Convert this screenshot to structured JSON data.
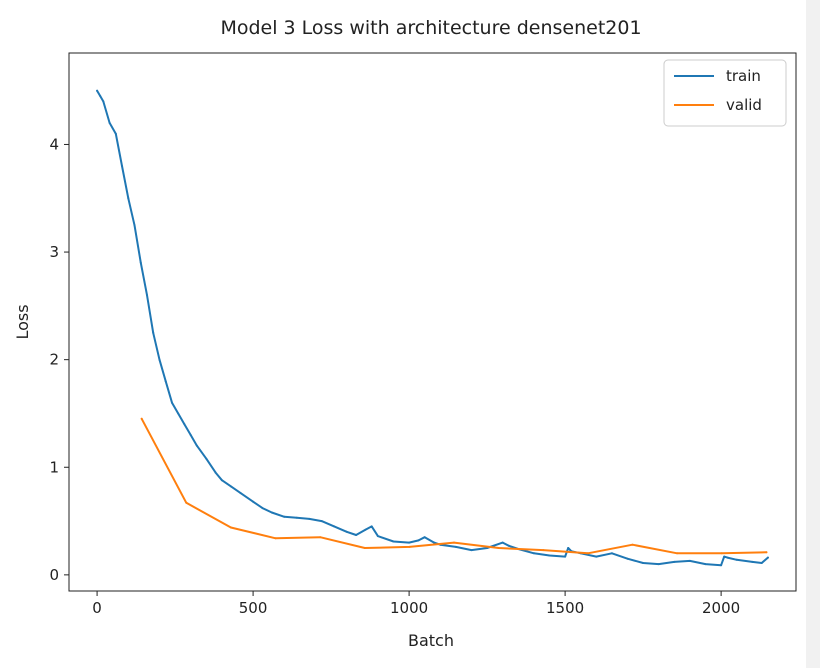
{
  "chart_data": {
    "type": "line",
    "title": "Model 3 Loss with architecture densenet201",
    "xlabel": "Batch",
    "ylabel": "Loss",
    "xlim": [
      -90,
      2240
    ],
    "ylim": [
      -0.15,
      4.85
    ],
    "xticks": [
      0,
      500,
      1000,
      1500,
      2000
    ],
    "yticks": [
      0,
      1,
      2,
      3,
      4
    ],
    "legend_position": "top-right",
    "grid": false,
    "series": [
      {
        "name": "train",
        "color": "#1f77b4",
        "x": [
          0,
          10,
          20,
          40,
          60,
          80,
          100,
          120,
          140,
          160,
          180,
          200,
          220,
          240,
          260,
          280,
          300,
          320,
          350,
          380,
          400,
          430,
          460,
          500,
          530,
          560,
          600,
          640,
          680,
          720,
          760,
          800,
          830,
          860,
          880,
          900,
          950,
          1000,
          1030,
          1050,
          1080,
          1100,
          1150,
          1200,
          1250,
          1300,
          1320,
          1350,
          1400,
          1450,
          1500,
          1510,
          1520,
          1550,
          1600,
          1650,
          1700,
          1750,
          1800,
          1850,
          1900,
          1950,
          2000,
          2010,
          2020,
          2050,
          2100,
          2130,
          2150
        ],
        "y": [
          4.5,
          4.45,
          4.4,
          4.2,
          4.1,
          3.8,
          3.5,
          3.25,
          2.9,
          2.6,
          2.25,
          2.0,
          1.8,
          1.6,
          1.5,
          1.4,
          1.3,
          1.2,
          1.08,
          0.95,
          0.88,
          0.82,
          0.76,
          0.68,
          0.62,
          0.58,
          0.54,
          0.53,
          0.52,
          0.5,
          0.45,
          0.4,
          0.37,
          0.42,
          0.45,
          0.36,
          0.31,
          0.3,
          0.32,
          0.35,
          0.3,
          0.28,
          0.26,
          0.23,
          0.25,
          0.3,
          0.27,
          0.24,
          0.2,
          0.18,
          0.17,
          0.25,
          0.22,
          0.2,
          0.17,
          0.2,
          0.15,
          0.11,
          0.1,
          0.12,
          0.13,
          0.1,
          0.09,
          0.17,
          0.16,
          0.14,
          0.12,
          0.11,
          0.16
        ]
      },
      {
        "name": "valid",
        "color": "#ff7f0e",
        "x": [
          143,
          286,
          429,
          572,
          715,
          858,
          1001,
          1144,
          1287,
          1430,
          1573,
          1716,
          1859,
          2002,
          2145
        ],
        "y": [
          1.45,
          0.67,
          0.44,
          0.34,
          0.35,
          0.25,
          0.26,
          0.3,
          0.25,
          0.23,
          0.2,
          0.28,
          0.2,
          0.2,
          0.21
        ]
      }
    ]
  }
}
